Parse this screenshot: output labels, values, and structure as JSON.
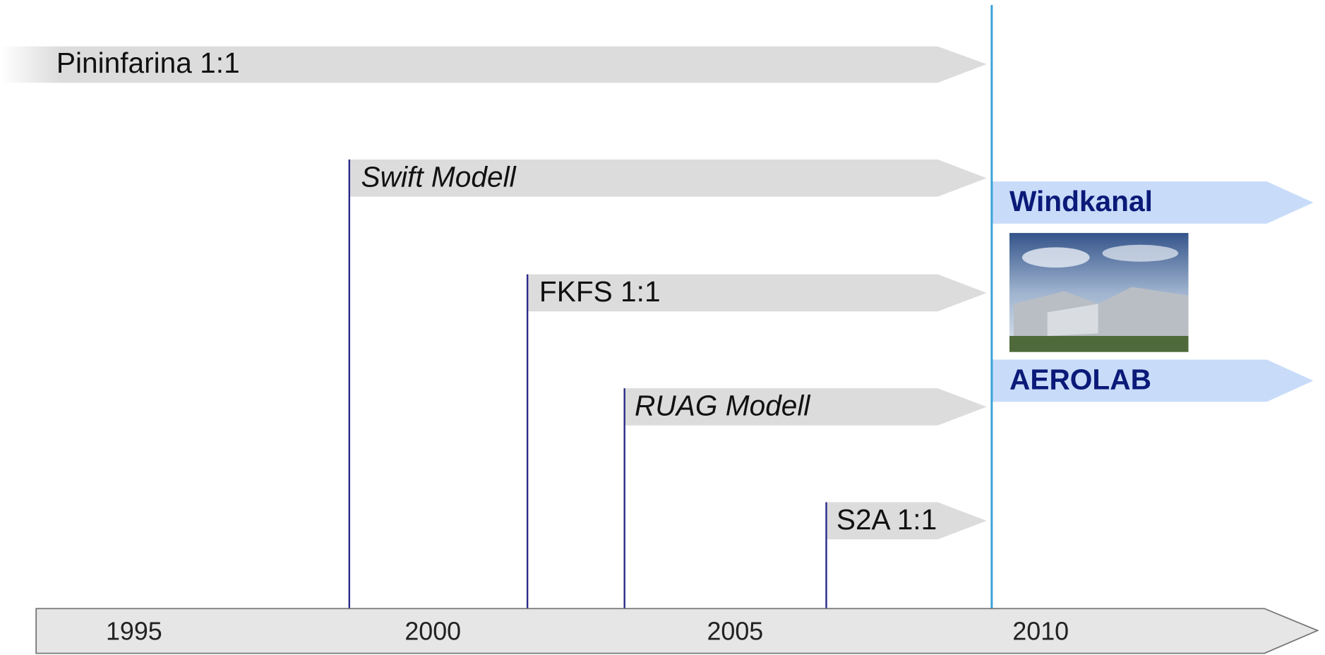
{
  "bars": [
    {
      "label": "Pininfarina 1:1"
    },
    {
      "label": "Swift Modell"
    },
    {
      "label": "FKFS 1:1"
    },
    {
      "label": "RUAG Modell"
    },
    {
      "label": "S2A 1:1"
    }
  ],
  "highlight": {
    "title": "Windkanal",
    "subtitle": "AEROLAB"
  },
  "axis": {
    "years": [
      "1995",
      "2000",
      "2005",
      "2010"
    ]
  }
}
